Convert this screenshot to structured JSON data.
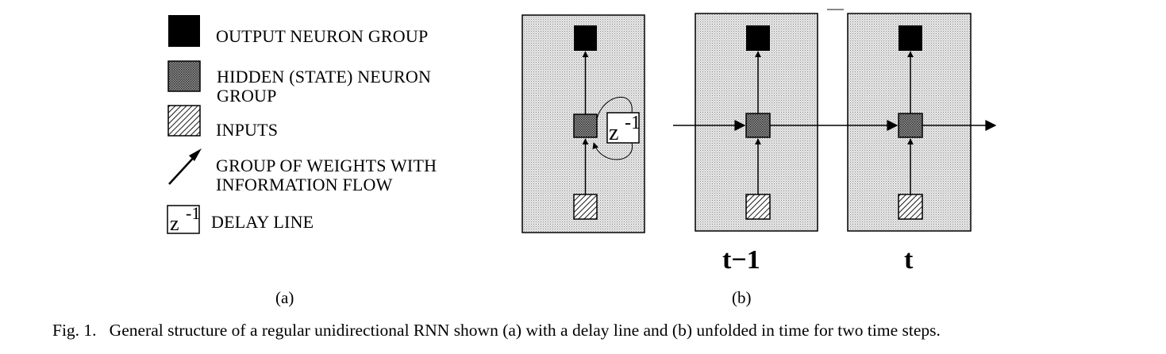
{
  "legend": {
    "output": "OUTPUT NEURON GROUP",
    "hidden_line1": "HIDDEN (STATE) NEURON",
    "hidden_line2": "GROUP",
    "inputs": "INPUTS",
    "weights_line1": "GROUP OF WEIGHTS WITH",
    "weights_line2": "INFORMATION FLOW",
    "delay_symbol": "z",
    "delay_exp": "-1",
    "delay": "DELAY LINE"
  },
  "panel_a": {
    "delay_symbol": "z",
    "delay_exp": "-1",
    "label": "(a)"
  },
  "panel_b": {
    "label": "(b)",
    "time_labels": [
      "t−1",
      "t"
    ]
  },
  "caption": "Fig. 1.   General structure of a regular unidirectional RNN shown (a) with a delay line and (b) unfolded in time for two time steps.",
  "colors": {
    "output": "#000000",
    "hidden": "#6e6e6e",
    "panel_bg": "#d6d6d6",
    "input_hatch": "#000000"
  }
}
